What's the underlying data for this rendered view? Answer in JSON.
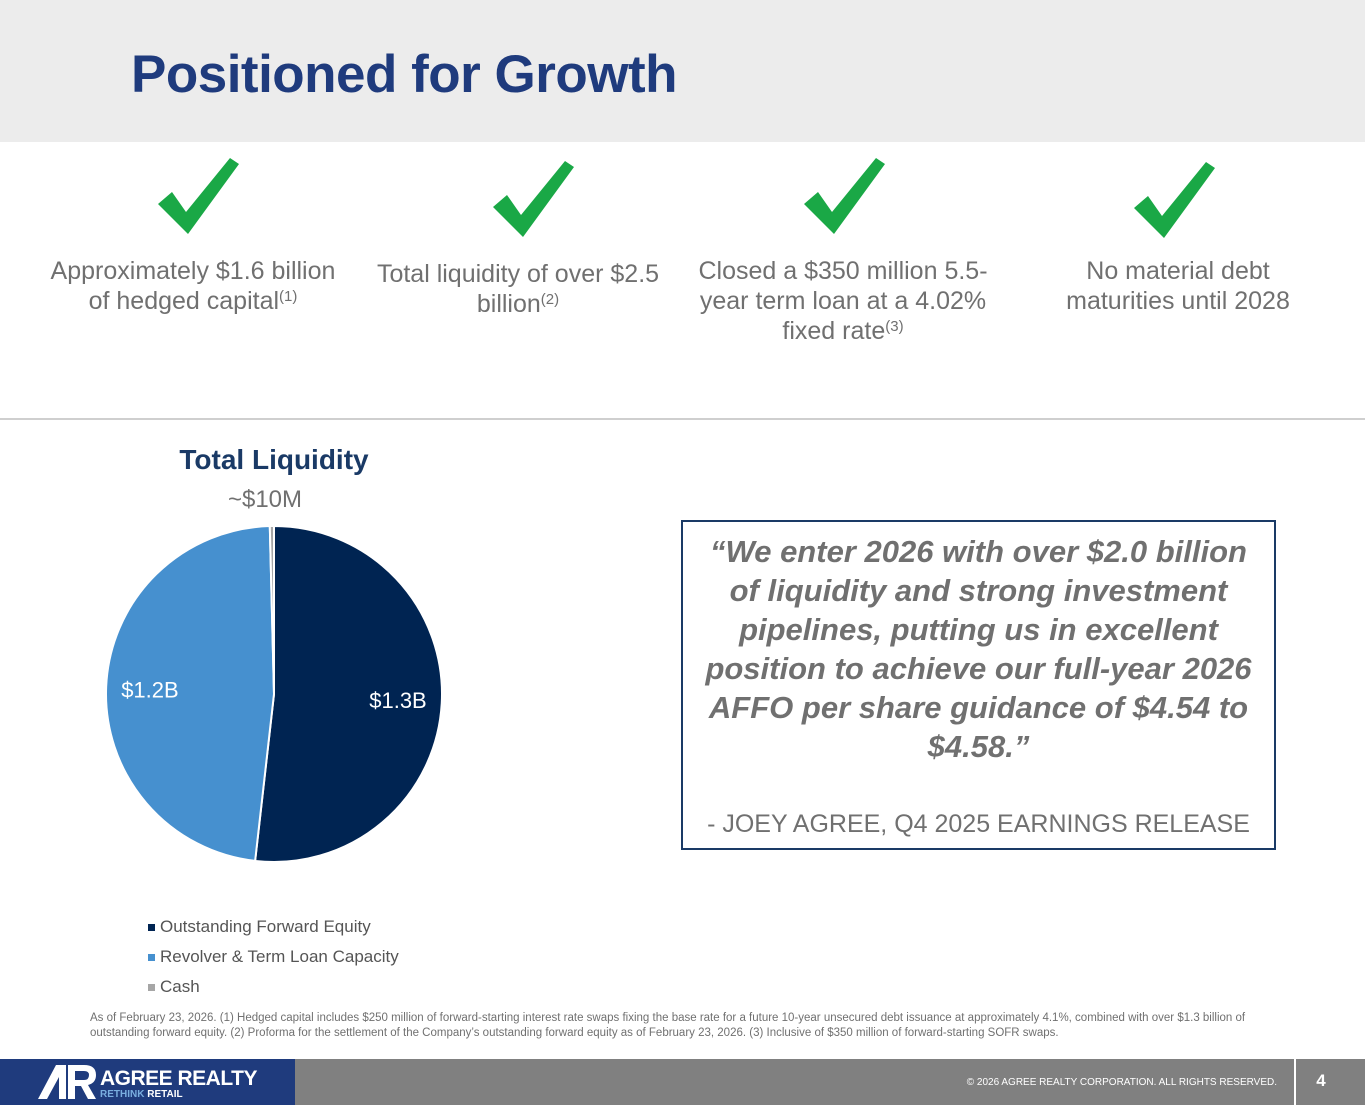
{
  "title": "Positioned for Growth",
  "highlights": [
    {
      "text": "Approximately $1.6 billion of hedged capital",
      "note": "(1)"
    },
    {
      "text": "Total liquidity of over $2.5 billion",
      "note": "(2)"
    },
    {
      "text": "Closed a $350 million 5.5-year term loan at a 4.02% fixed rate",
      "note": "(3)"
    },
    {
      "text": "No material debt maturities until 2028",
      "note": ""
    }
  ],
  "colors": {
    "check": "#1aa846",
    "title": "#1f3b7d",
    "navy": "#002452",
    "blue": "#4690cf",
    "gray": "#a6a6a6"
  },
  "chart_data": {
    "type": "pie",
    "title": "Total Liquidity",
    "unit": "$B",
    "series": [
      {
        "name": "Outstanding Forward Equity",
        "value": 1.3,
        "label": "$1.3B",
        "color": "#002452"
      },
      {
        "name": "Revolver & Term Loan Capacity",
        "value": 1.2,
        "label": "$1.2B",
        "color": "#4690cf"
      },
      {
        "name": "Cash",
        "value": 0.01,
        "label": "~$10M",
        "color": "#a6a6a6"
      }
    ],
    "legend_position": "bottom-left"
  },
  "quote": {
    "text": "“We enter 2026 with over $2.0 billion of liquidity and strong investment pipelines, putting us in excellent position to achieve our full-year 2026 AFFO per share guidance of $4.54 to $4.58.”",
    "attribution": "- JOEY AGREE, Q4 2025 EARNINGS RELEASE"
  },
  "footnote": "As of February 23, 2026. (1) Hedged capital includes $250 million of forward-starting interest rate swaps fixing the base rate for a future 10-year unsecured debt issuance at approximately 4.1%, combined with over $1.3 billion of outstanding forward equity. (2) Proforma for the settlement of the Company’s outstanding forward equity as of February 23, 2026. (3) Inclusive of $350 million of forward-starting SOFR swaps.",
  "footer": {
    "logo_name": "AGREE REALTY",
    "logo_tag_prefix": "RETHINK",
    "logo_tag_suffix": "RETAIL",
    "copyright": "© 2026 AGREE REALTY CORPORATION. ALL RIGHTS RESERVED.",
    "page_number": "4"
  }
}
